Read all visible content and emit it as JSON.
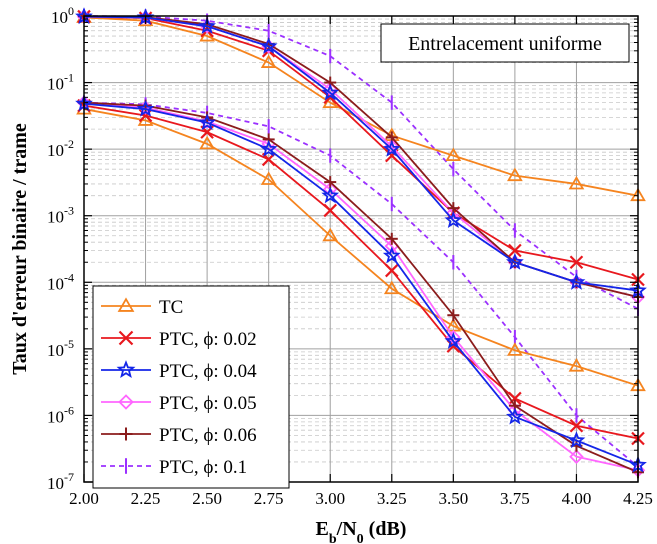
{
  "chart_data": {
    "type": "line",
    "title": "",
    "annotation": "Entrelacement uniforme",
    "xlabel": {
      "main": "E",
      "sub1": "b",
      "mid": "/N",
      "sub2": "0",
      "tail": " (dB)"
    },
    "ylabel": "Taux d'erreur binaire / trame",
    "yscale": "log",
    "xlim": [
      2.0,
      4.25
    ],
    "ylim": [
      1e-07,
      1
    ],
    "x_ticks": [
      "2.00",
      "2.25",
      "2.50",
      "2.75",
      "3.00",
      "3.25",
      "3.50",
      "3.75",
      "4.00",
      "4.25"
    ],
    "y_ticks": [
      {
        "base": "10",
        "exp": "0"
      },
      {
        "base": "10",
        "exp": "-1"
      },
      {
        "base": "10",
        "exp": "-2"
      },
      {
        "base": "10",
        "exp": "-3"
      },
      {
        "base": "10",
        "exp": "-4"
      },
      {
        "base": "10",
        "exp": "-5"
      },
      {
        "base": "10",
        "exp": "-6"
      },
      {
        "base": "10",
        "exp": "-7"
      }
    ],
    "grid": true,
    "legend_position": "bottom-left",
    "x": [
      2.0,
      2.25,
      2.5,
      2.75,
      3.0,
      3.25,
      3.5,
      3.75,
      4.0,
      4.25
    ],
    "series": [
      {
        "name": "TC",
        "color": "#f5841f",
        "marker": "triangle",
        "dash": "solid",
        "fer": [
          0.95,
          0.85,
          0.5,
          0.2,
          0.05,
          0.016,
          0.008,
          0.004,
          0.003,
          0.002
        ],
        "ber": [
          0.04,
          0.027,
          0.012,
          0.0035,
          0.0005,
          8e-05,
          2.2e-05,
          9.5e-06,
          5.5e-06,
          2.8e-06
        ]
      },
      {
        "name": "PTC, ϕ: 0.02",
        "color": "#e8181e",
        "marker": "x",
        "dash": "solid",
        "fer": [
          0.98,
          0.93,
          0.6,
          0.3,
          0.06,
          0.008,
          0.0011,
          0.0003,
          0.0002,
          0.00011
        ],
        "ber": [
          0.045,
          0.032,
          0.018,
          0.007,
          0.0012,
          0.00015,
          1.1e-05,
          1.8e-06,
          7e-07,
          4.5e-07
        ]
      },
      {
        "name": "PTC, ϕ: 0.04",
        "color": "#1426e8",
        "marker": "star",
        "dash": "solid",
        "fer": [
          0.98,
          0.95,
          0.7,
          0.35,
          0.07,
          0.01,
          0.00085,
          0.0002,
          0.0001,
          7.5e-05
        ],
        "ber": [
          0.048,
          0.04,
          0.025,
          0.01,
          0.002,
          0.00025,
          1.3e-05,
          9.5e-07,
          4.2e-07,
          1.8e-07
        ]
      },
      {
        "name": "PTC, ϕ: 0.05",
        "color": "#ff66ff",
        "marker": "diamond",
        "dash": "solid",
        "fer": [
          0.98,
          0.95,
          0.7,
          0.35,
          0.08,
          0.011,
          0.0011,
          0.0002,
          0.0001,
          6e-05
        ],
        "ber": [
          0.05,
          0.042,
          0.026,
          0.012,
          0.0025,
          0.00035,
          1.5e-05,
          1.2e-06,
          2.4e-07,
          1.5e-07
        ]
      },
      {
        "name": "PTC, ϕ: 0.06",
        "color": "#8b1c1c",
        "marker": "plus",
        "dash": "solid",
        "fer": [
          0.99,
          0.96,
          0.75,
          0.38,
          0.1,
          0.015,
          0.0013,
          0.0002,
          0.0001,
          6e-05
        ],
        "ber": [
          0.05,
          0.045,
          0.03,
          0.014,
          0.0032,
          0.00045,
          3.2e-05,
          1.4e-06,
          3.5e-07,
          1.4e-07
        ]
      },
      {
        "name": "PTC, ϕ: 0.1",
        "color": "#9b30ff",
        "marker": "vbar",
        "dash": "dashed",
        "fer": [
          1.0,
          0.98,
          0.85,
          0.6,
          0.25,
          0.05,
          0.005,
          0.0006,
          0.00012,
          4e-05
        ],
        "ber": [
          0.05,
          0.047,
          0.035,
          0.022,
          0.008,
          0.0015,
          0.0002,
          1.5e-05,
          1e-06,
          1.7e-07
        ]
      }
    ]
  }
}
